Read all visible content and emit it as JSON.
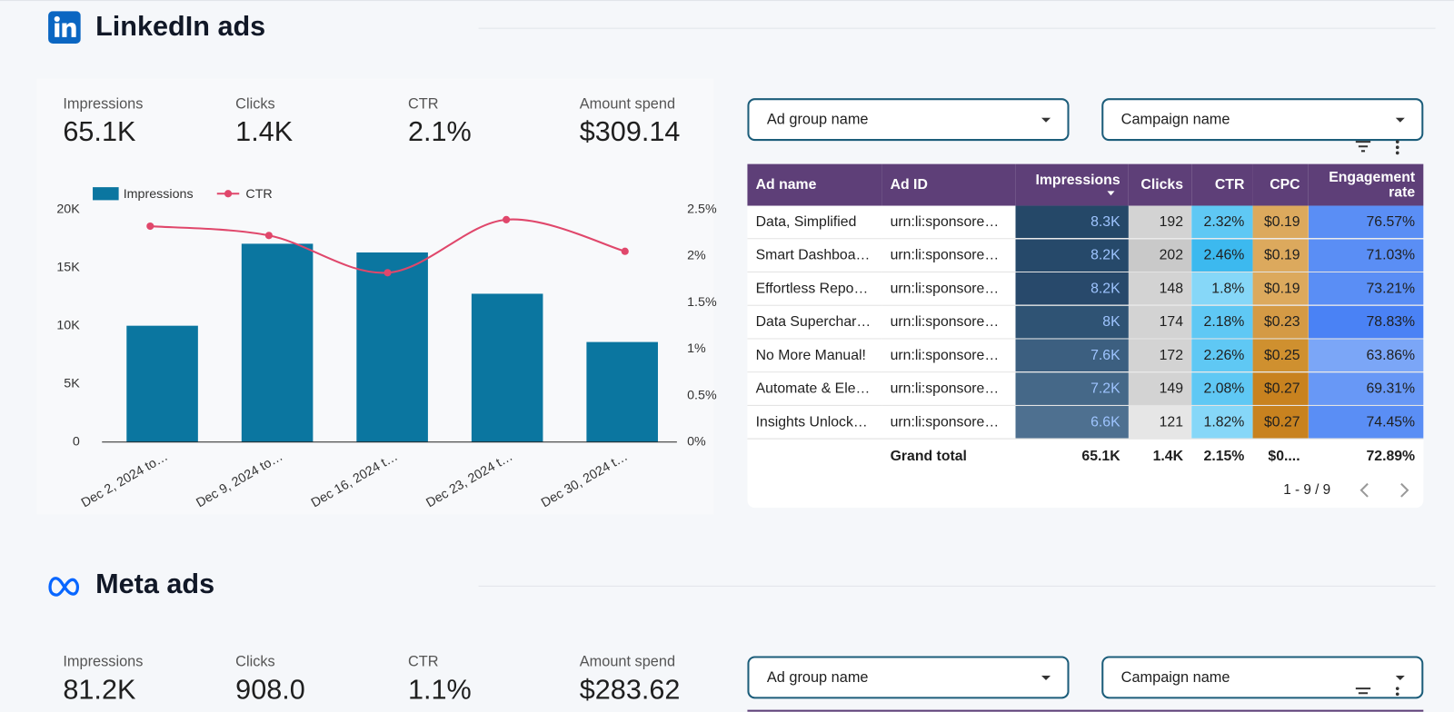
{
  "linkedin": {
    "title": "LinkedIn ads",
    "kpis": [
      {
        "label": "Impressions",
        "value": "65.1K"
      },
      {
        "label": "Clicks",
        "value": "1.4K"
      },
      {
        "label": "CTR",
        "value": "2.1%"
      },
      {
        "label": "Amount spend",
        "value": "$309.14"
      }
    ],
    "chart": {
      "type": "combo",
      "categories": [
        "Dec 2, 2024 to…",
        "Dec 9, 2024 to…",
        "Dec 16, 2024 t…",
        "Dec 23, 2024 t…",
        "Dec 30, 2024 t…"
      ],
      "series": [
        {
          "name": "Impressions",
          "type": "bar",
          "color": "#0b76a0",
          "values": [
            10000,
            17050,
            16300,
            12750,
            8600
          ]
        },
        {
          "name": "CTR",
          "type": "line",
          "axis": "y2",
          "color": "#e0476b",
          "values": [
            2.32,
            2.22,
            1.82,
            2.39,
            2.05
          ]
        }
      ],
      "ylim": [
        0,
        20000
      ],
      "yticks": [
        0,
        {
          "value": 5000,
          "label": "5K"
        },
        {
          "value": 10000,
          "label": "10K"
        },
        {
          "value": 15000,
          "label": "15K"
        },
        {
          "value": 20000,
          "label": "20K"
        }
      ],
      "y2lim": [
        0,
        2.5
      ],
      "y2ticks": [
        {
          "value": 0,
          "label": "0%"
        },
        {
          "value": 0.5,
          "label": "0.5%"
        },
        {
          "value": 1,
          "label": "1%"
        },
        {
          "value": 1.5,
          "label": "1.5%"
        },
        {
          "value": 2,
          "label": "2%"
        },
        {
          "value": 2.5,
          "label": "2.5%"
        }
      ],
      "legend": "top-left"
    },
    "filters": [
      "Ad group name",
      "Campaign name"
    ],
    "table": {
      "columns": [
        "Ad name",
        "Ad ID",
        "Impressions",
        "Clicks",
        "CTR",
        "CPC",
        "Engagement rate"
      ],
      "rows": [
        [
          "Data, Simplified",
          "urn:li:sponsore…",
          "8.3K",
          "192",
          "2.32%",
          "$0.19",
          "76.57%"
        ],
        [
          "Smart Dashboa…",
          "urn:li:sponsore…",
          "8.2K",
          "202",
          "2.46%",
          "$0.19",
          "71.03%"
        ],
        [
          "Effortless Repo…",
          "urn:li:sponsore…",
          "8.2K",
          "148",
          "1.8%",
          "$0.19",
          "73.21%"
        ],
        [
          "Data Superchar…",
          "urn:li:sponsore…",
          "8K",
          "174",
          "2.18%",
          "$0.23",
          "78.83%"
        ],
        [
          "No More Manual!",
          "urn:li:sponsore…",
          "7.6K",
          "172",
          "2.26%",
          "$0.25",
          "63.86%"
        ],
        [
          "Automate & Ele…",
          "urn:li:sponsore…",
          "7.2K",
          "149",
          "2.08%",
          "$0.27",
          "69.31%"
        ],
        [
          "Insights Unlock…",
          "urn:li:sponsore…",
          "6.6K",
          "121",
          "1.82%",
          "$0.27",
          "74.45%"
        ]
      ],
      "grand_total": {
        "label": "Grand total",
        "values": [
          "65.1K",
          "1.4K",
          "2.15%",
          "$0....",
          "72.89%"
        ]
      },
      "pagination": "1 - 9 / 9"
    }
  },
  "meta": {
    "title": "Meta ads",
    "kpis": [
      {
        "label": "Impressions",
        "value": "81.2K"
      },
      {
        "label": "Clicks",
        "value": "908.0"
      },
      {
        "label": "CTR",
        "value": "1.1%"
      },
      {
        "label": "Amount spend",
        "value": "$283.62"
      }
    ],
    "filters": [
      "Ad group name",
      "Campaign name"
    ]
  }
}
